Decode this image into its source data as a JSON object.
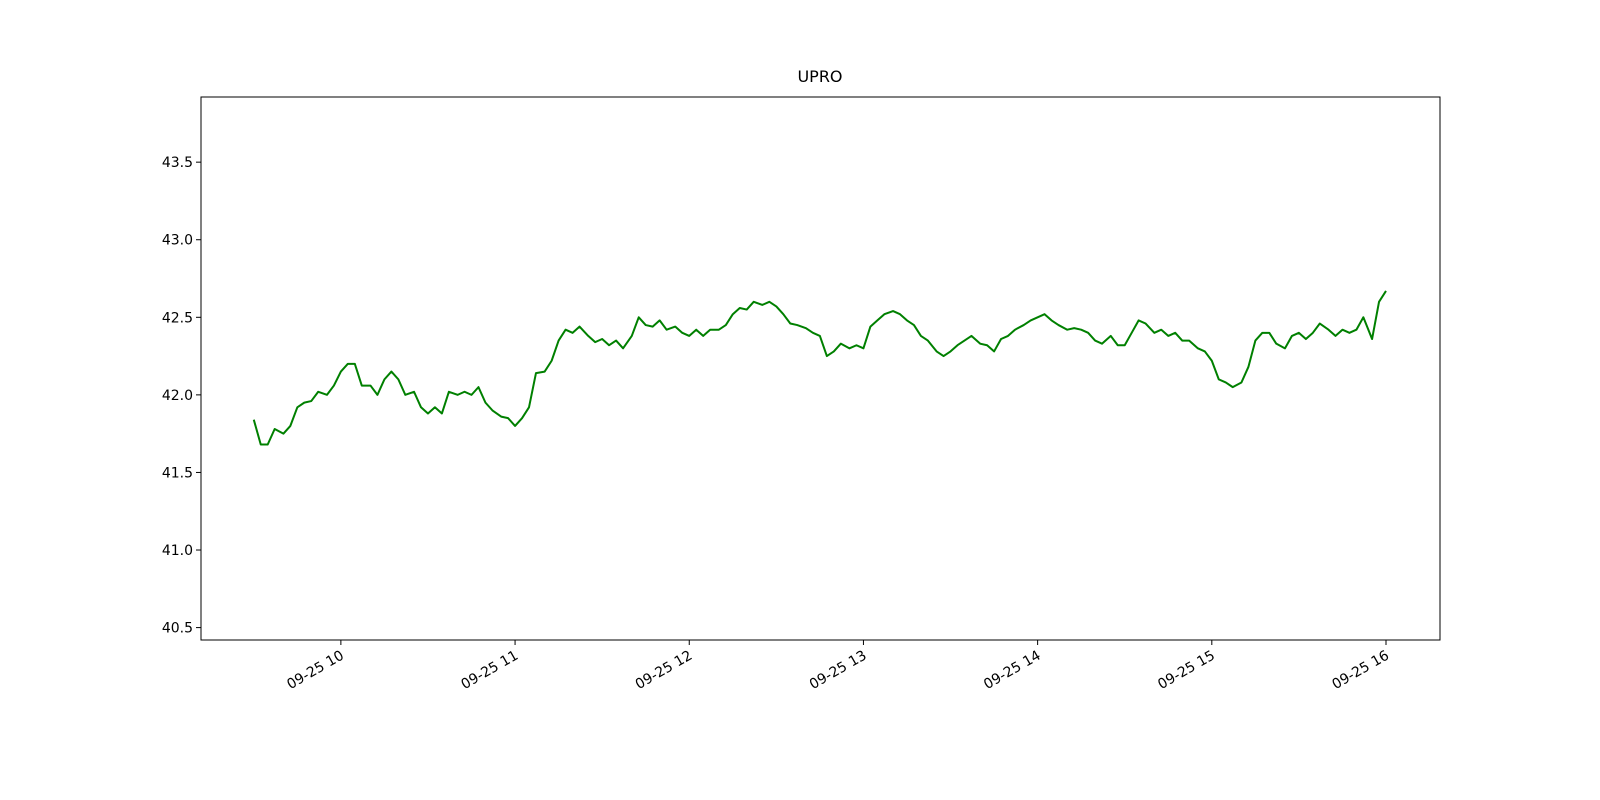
{
  "chart_data": {
    "type": "line",
    "title": "UPRO",
    "x": [
      9.5,
      9.54,
      9.58,
      9.62,
      9.67,
      9.71,
      9.75,
      9.79,
      9.83,
      9.87,
      9.92,
      9.96,
      10,
      10.04,
      10.08,
      10.12,
      10.17,
      10.21,
      10.25,
      10.29,
      10.33,
      10.37,
      10.42,
      10.46,
      10.5,
      10.54,
      10.58,
      10.62,
      10.67,
      10.71,
      10.75,
      10.79,
      10.83,
      10.87,
      10.92,
      10.96,
      11,
      11.04,
      11.08,
      11.12,
      11.17,
      11.21,
      11.25,
      11.29,
      11.33,
      11.37,
      11.42,
      11.46,
      11.5,
      11.54,
      11.58,
      11.62,
      11.67,
      11.71,
      11.75,
      11.79,
      11.83,
      11.87,
      11.92,
      11.96,
      12,
      12.04,
      12.08,
      12.12,
      12.17,
      12.21,
      12.25,
      12.29,
      12.33,
      12.37,
      12.42,
      12.46,
      12.5,
      12.54,
      12.58,
      12.62,
      12.67,
      12.71,
      12.75,
      12.79,
      12.83,
      12.87,
      12.92,
      12.96,
      13,
      13.04,
      13.08,
      13.12,
      13.17,
      13.21,
      13.25,
      13.29,
      13.33,
      13.37,
      13.42,
      13.46,
      13.5,
      13.54,
      13.58,
      13.62,
      13.67,
      13.71,
      13.75,
      13.79,
      13.83,
      13.87,
      13.92,
      13.96,
      14,
      14.04,
      14.08,
      14.12,
      14.17,
      14.21,
      14.25,
      14.29,
      14.33,
      14.37,
      14.42,
      14.46,
      14.5,
      14.54,
      14.58,
      14.62,
      14.67,
      14.71,
      14.75,
      14.79,
      14.83,
      14.87,
      14.92,
      14.96,
      15,
      15.04,
      15.08,
      15.12,
      15.17,
      15.21,
      15.25,
      15.29,
      15.33,
      15.37,
      15.42,
      15.46,
      15.5,
      15.54,
      15.58,
      15.62,
      15.67,
      15.71,
      15.75,
      15.79,
      15.83,
      15.87,
      15.92,
      15.96,
      16
    ],
    "series": [
      {
        "color": "#008000",
        "values": [
          41.84,
          41.68,
          41.68,
          41.78,
          41.75,
          41.8,
          41.92,
          41.95,
          41.96,
          42.02,
          42.0,
          42.06,
          42.15,
          42.2,
          42.2,
          42.06,
          42.06,
          42.0,
          42.1,
          42.15,
          42.1,
          42.0,
          42.02,
          41.92,
          41.88,
          41.92,
          41.88,
          42.02,
          42.0,
          42.02,
          42.0,
          42.05,
          41.95,
          41.9,
          41.86,
          41.85,
          41.8,
          41.85,
          41.92,
          42.14,
          42.15,
          42.22,
          42.35,
          42.42,
          42.4,
          42.44,
          42.38,
          42.34,
          42.36,
          42.32,
          42.35,
          42.3,
          42.38,
          42.5,
          42.45,
          42.44,
          42.48,
          42.42,
          42.44,
          42.4,
          42.38,
          42.42,
          42.38,
          42.42,
          42.42,
          42.45,
          42.52,
          42.56,
          42.55,
          42.6,
          42.58,
          42.6,
          42.57,
          42.52,
          42.46,
          42.45,
          42.43,
          42.4,
          42.38,
          42.25,
          42.28,
          42.33,
          42.3,
          42.32,
          42.3,
          42.44,
          42.48,
          42.52,
          42.54,
          42.52,
          42.48,
          42.45,
          42.38,
          42.35,
          42.28,
          42.25,
          42.28,
          42.32,
          42.35,
          42.38,
          42.33,
          42.32,
          42.28,
          42.36,
          42.38,
          42.42,
          42.45,
          42.48,
          42.5,
          42.52,
          42.48,
          42.45,
          42.42,
          42.43,
          42.42,
          42.4,
          42.35,
          42.33,
          42.38,
          42.32,
          42.32,
          42.4,
          42.48,
          42.46,
          42.4,
          42.42,
          42.38,
          42.4,
          42.35,
          42.35,
          42.3,
          42.28,
          42.22,
          42.1,
          42.08,
          42.05,
          42.08,
          42.18,
          42.35,
          42.4,
          42.4,
          42.33,
          42.3,
          42.38,
          42.4,
          42.36,
          42.4,
          42.46,
          42.42,
          42.38,
          42.42,
          42.4,
          42.42,
          42.5,
          42.36,
          42.6,
          42.67
        ]
      }
    ],
    "xlim": [
      9.197,
      16.31
    ],
    "xticks": [
      {
        "value": 10,
        "label": "09-25 10"
      },
      {
        "value": 11,
        "label": "09-25 11"
      },
      {
        "value": 12,
        "label": "09-25 12"
      },
      {
        "value": 13,
        "label": "09-25 13"
      },
      {
        "value": 14,
        "label": "09-25 14"
      },
      {
        "value": 15,
        "label": "09-25 15"
      },
      {
        "value": 16,
        "label": "09-25 16"
      }
    ],
    "ylim": [
      40.42,
      43.92
    ],
    "yticks": [
      40.5,
      {
        "value": 41,
        "label": "41.0"
      },
      41.5,
      {
        "value": 42,
        "label": "42.0"
      },
      42.5,
      {
        "value": 43,
        "label": "43.0"
      },
      43.5
    ],
    "grid": false
  }
}
